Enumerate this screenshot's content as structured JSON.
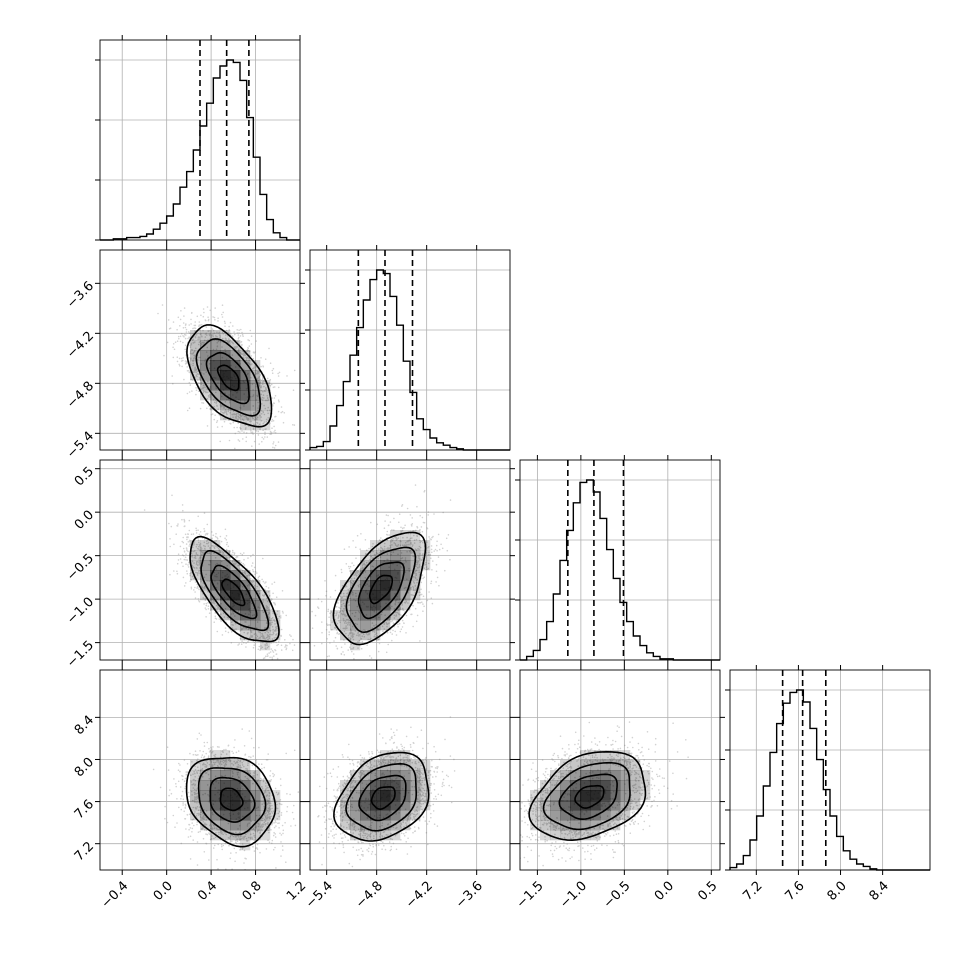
{
  "chart_data": {
    "type": "corner",
    "title": "",
    "grid": true,
    "parameters": [
      {
        "range": [
          -0.6,
          1.2
        ],
        "ticks": [
          -0.4,
          0.0,
          0.4,
          0.8,
          1.2
        ],
        "tick_labels": [
          "−0.4",
          "0.0",
          "0.4",
          "0.8",
          "1.2"
        ],
        "quantiles": [
          0.3,
          0.54,
          0.74
        ],
        "hist_bin_edges": [
          -0.6,
          -0.54,
          -0.48,
          -0.42,
          -0.36,
          -0.3,
          -0.24,
          -0.18,
          -0.12,
          -0.06,
          0.0,
          0.06,
          0.12,
          0.18,
          0.24,
          0.3,
          0.36,
          0.42,
          0.48,
          0.54,
          0.6,
          0.66,
          0.72,
          0.78,
          0.84,
          0.9,
          0.96,
          1.02,
          1.08,
          1.14,
          1.2
        ],
        "hist_counts": [
          0,
          0,
          1,
          1,
          2,
          2,
          3,
          5,
          9,
          14,
          20,
          30,
          44,
          57,
          75,
          95,
          114,
          135,
          145,
          150,
          148,
          133,
          102,
          69,
          38,
          17,
          6,
          2,
          0,
          0
        ]
      },
      {
        "range": [
          -5.6,
          -3.2
        ],
        "ticks": [
          -5.4,
          -4.8,
          -4.2,
          -3.6
        ],
        "tick_labels": [
          "−5.4",
          "−4.8",
          "−4.2",
          "−3.6"
        ],
        "quantiles": [
          -5.02,
          -4.7,
          -4.37
        ],
        "hist_bin_edges": [
          -5.6,
          -5.52,
          -5.44,
          -5.36,
          -5.28,
          -5.2,
          -5.12,
          -5.04,
          -4.96,
          -4.88,
          -4.8,
          -4.72,
          -4.64,
          -4.56,
          -4.48,
          -4.4,
          -4.32,
          -4.24,
          -4.16,
          -4.08,
          -4.0,
          -3.92,
          -3.84,
          -3.76,
          -3.68,
          -3.6,
          -3.52,
          -3.44,
          -3.36,
          -3.28,
          -3.2
        ],
        "hist_counts": [
          2,
          3,
          7,
          20,
          37,
          57,
          79,
          102,
          125,
          142,
          150,
          147,
          128,
          104,
          74,
          48,
          26,
          17,
          10,
          6,
          4,
          2,
          1,
          0,
          0,
          0,
          0,
          0,
          0,
          0
        ]
      },
      {
        "range": [
          -1.7,
          0.6
        ],
        "ticks": [
          -1.5,
          -1.0,
          -0.5,
          0.0,
          0.5
        ],
        "tick_labels": [
          "−1.5",
          "−1.0",
          "−0.5",
          "0.0",
          "0.5"
        ],
        "quantiles": [
          -1.15,
          -0.85,
          -0.51
        ],
        "hist_bin_edges": [
          -1.7,
          -1.6233,
          -1.5467,
          -1.47,
          -1.3933,
          -1.3167,
          -1.24,
          -1.1633,
          -1.0867,
          -1.01,
          -0.9333,
          -0.8567,
          -0.78,
          -0.7033,
          -0.6267,
          -0.55,
          -0.4733,
          -0.3967,
          -0.32,
          -0.2433,
          -0.1667,
          -0.09,
          -0.0133,
          0.0633,
          0.14,
          0.2167,
          0.2933,
          0.37,
          0.4467,
          0.5233,
          0.6
        ],
        "hist_counts": [
          0,
          3,
          8,
          17,
          32,
          55,
          83,
          108,
          131,
          148,
          150,
          140,
          118,
          92,
          68,
          48,
          32,
          20,
          12,
          6,
          3,
          1,
          1,
          0,
          0,
          0,
          0,
          0,
          0,
          0
        ]
      },
      {
        "range": [
          6.95,
          8.85
        ],
        "ticks": [
          7.2,
          7.6,
          8.0,
          8.4
        ],
        "tick_labels": [
          "7.2",
          "7.6",
          "8.0",
          "8.4"
        ],
        "quantiles": [
          7.45,
          7.64,
          7.86
        ],
        "hist_bin_edges": [
          6.95,
          7.0133,
          7.0767,
          7.14,
          7.2033,
          7.2667,
          7.33,
          7.3933,
          7.4567,
          7.52,
          7.5833,
          7.6467,
          7.71,
          7.7733,
          7.8367,
          7.9,
          7.9633,
          8.0267,
          8.09,
          8.1533,
          8.2167,
          8.28,
          8.3433,
          8.4067,
          8.47,
          8.5333,
          8.5967,
          8.66,
          8.7233,
          8.7867,
          8.85
        ],
        "hist_counts": [
          2,
          5,
          12,
          25,
          45,
          70,
          98,
          122,
          139,
          148,
          150,
          140,
          118,
          92,
          67,
          45,
          28,
          16,
          9,
          5,
          3,
          1,
          0,
          0,
          0,
          0,
          0,
          0,
          0,
          0
        ]
      }
    ],
    "pairs": [
      {
        "x": 0,
        "y": 1,
        "mean": [
          0.56,
          -4.73
        ],
        "sd": [
          0.19,
          0.3
        ],
        "corr": -0.55
      },
      {
        "x": 0,
        "y": 2,
        "mean": [
          0.6,
          -0.92
        ],
        "sd": [
          0.2,
          0.3
        ],
        "corr": -0.72
      },
      {
        "x": 1,
        "y": 2,
        "mean": [
          -4.75,
          -0.88
        ],
        "sd": [
          0.27,
          0.32
        ],
        "corr": 0.55
      },
      {
        "x": 0,
        "y": 3,
        "mean": [
          0.58,
          7.62
        ],
        "sd": [
          0.2,
          0.21
        ],
        "corr": -0.2
      },
      {
        "x": 1,
        "y": 3,
        "mean": [
          -4.72,
          7.64
        ],
        "sd": [
          0.28,
          0.21
        ],
        "corr": 0.3
      },
      {
        "x": 2,
        "y": 3,
        "mean": [
          -0.9,
          7.65
        ],
        "sd": [
          0.33,
          0.21
        ],
        "corr": 0.32
      }
    ],
    "contour_sigma_levels": [
      0.5,
      1.0,
      1.5,
      2.0
    ],
    "colors": {
      "line": "#000000",
      "grid": "#b0b0b0",
      "points": "#7f7f7f",
      "density": "#000000"
    }
  }
}
